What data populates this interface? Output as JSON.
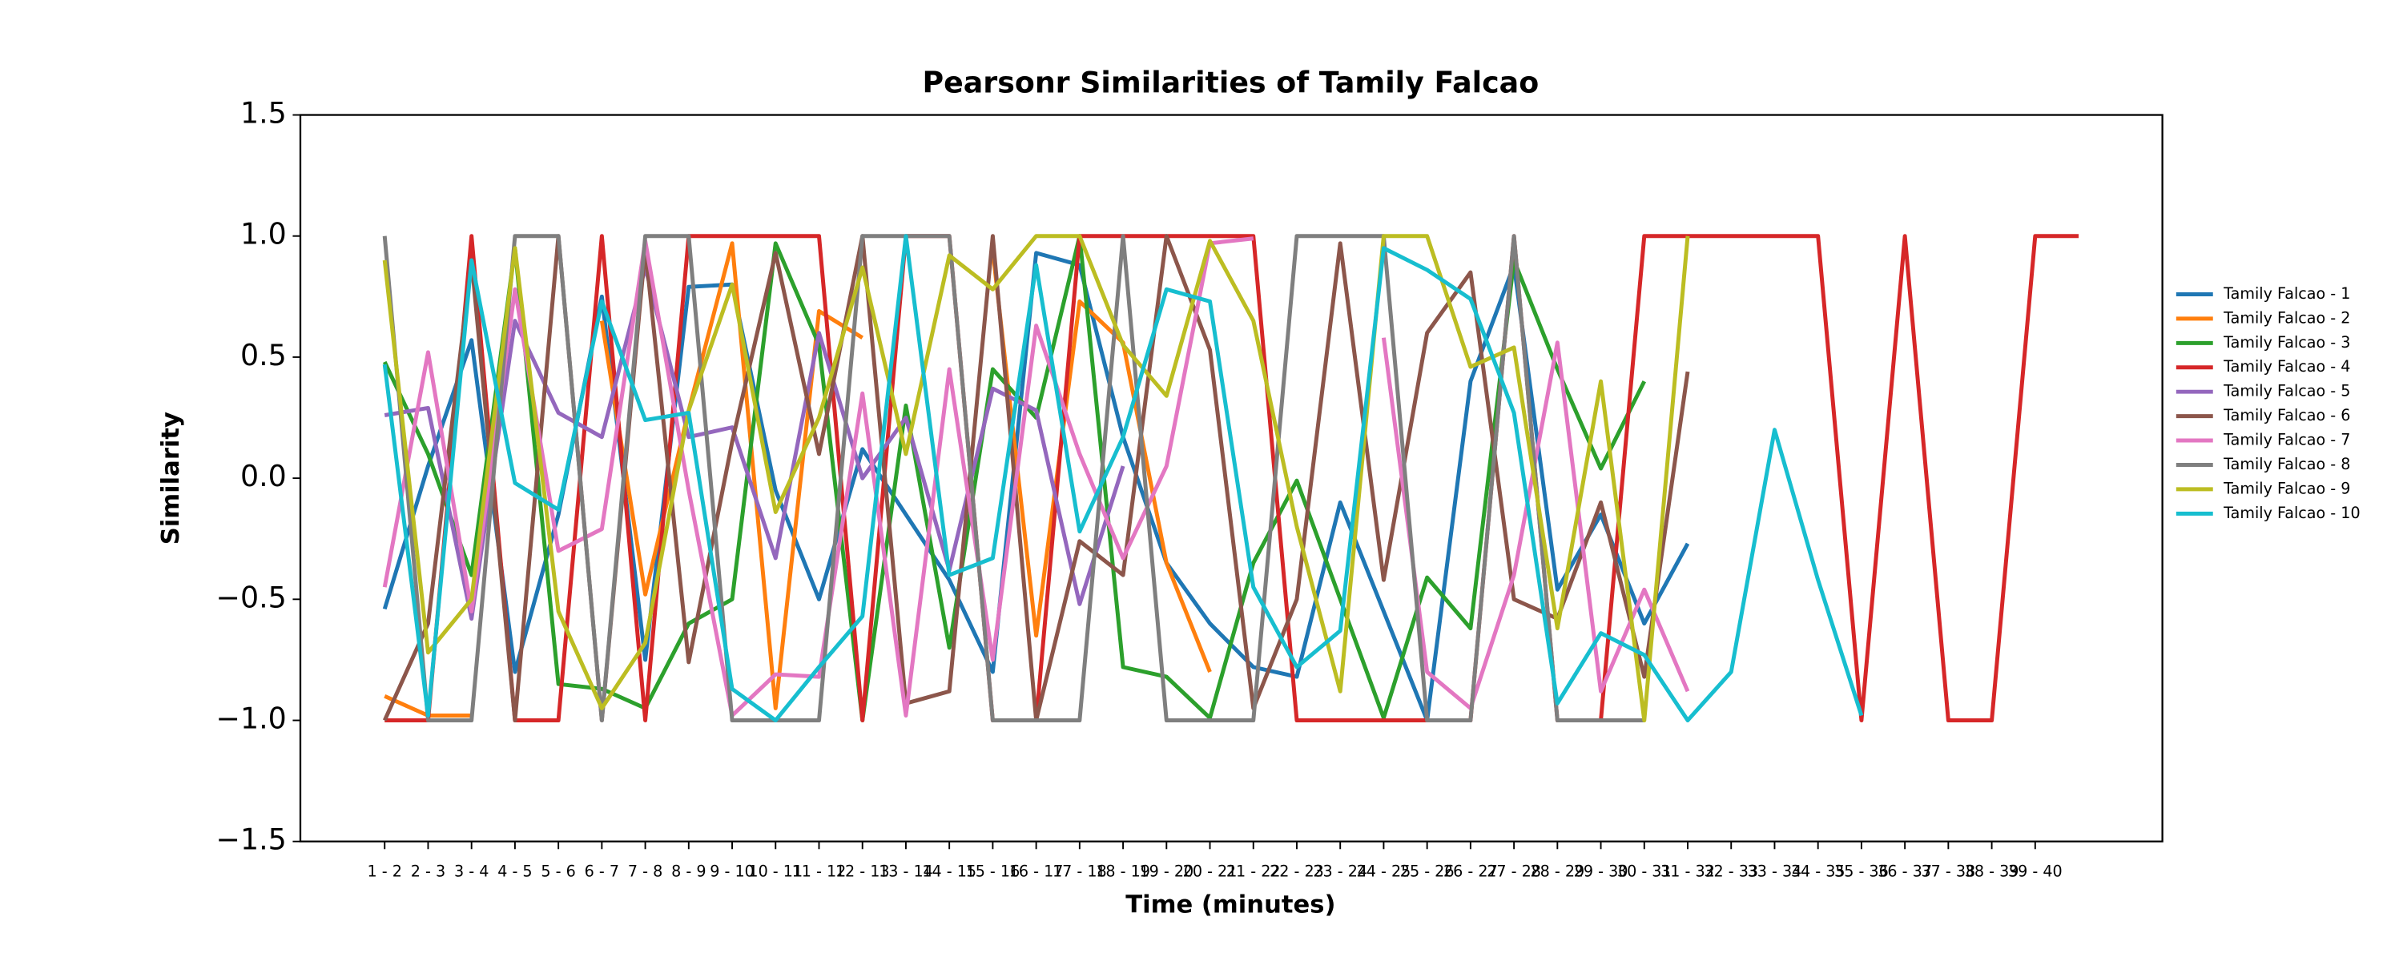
{
  "chart_data": {
    "type": "line",
    "title": "Pearsonr Similarities of Tamily Falcao",
    "x_label": "Time (minutes)",
    "y_label": "Similarity",
    "categories": [
      "1 - 2",
      "2 - 3",
      "3 - 4",
      "4 - 5",
      "5 - 6",
      "6 - 7",
      "7 - 8",
      "8 - 9",
      "9 - 10",
      "10 - 11",
      "11 - 12",
      "12 - 13",
      "13 - 14",
      "14 - 15",
      "15 - 16",
      "16 - 17",
      "17 - 18",
      "18 - 19",
      "19 - 20",
      "20 - 21",
      "21 - 22",
      "22 - 23",
      "23 - 24",
      "24 - 25",
      "25 - 26",
      "26 - 27",
      "27 - 28",
      "28 - 29",
      "29 - 30",
      "30 - 31",
      "31 - 32",
      "32 - 33",
      "33 - 34",
      "34 - 35",
      "35 - 36",
      "36 - 37",
      "37 - 38",
      "38 - 39",
      "39 - 40",
      null
    ],
    "ylim": [
      -1.5,
      1.5
    ],
    "yticks": [
      {
        "value": -1.5,
        "label": "−1.5"
      },
      {
        "value": -1,
        "label": "−1.0"
      },
      {
        "value": -0.5,
        "label": "−0.5"
      },
      {
        "value": 0,
        "label": "0.0"
      },
      0.5,
      {
        "value": 1,
        "label": "1.0"
      },
      1.5
    ],
    "legend": "right",
    "series": [
      {
        "name": "Tamily Falcao - 1",
        "color": "#1f77b4",
        "values": [
          -0.54,
          0.05,
          0.57,
          -0.8,
          -0.15,
          0.75,
          -0.75,
          0.79,
          0.8,
          -0.05,
          -0.5,
          0.12,
          -0.15,
          -0.42,
          -0.8,
          0.93,
          0.88,
          0.17,
          -0.35,
          -0.6,
          -0.78,
          -0.82,
          -0.1,
          -0.55,
          -1.0,
          0.4,
          0.88,
          -0.46,
          -0.15,
          -0.6,
          -0.27,
          null,
          null,
          null,
          null,
          null,
          null,
          null,
          null,
          null
        ]
      },
      {
        "name": "Tamily Falcao - 2",
        "color": "#ff7f0e",
        "values": [
          -0.9,
          -0.98,
          -0.98,
          null,
          null,
          0.65,
          -0.48,
          0.28,
          0.97,
          -0.95,
          0.69,
          0.58,
          null,
          null,
          0.94,
          -0.65,
          0.73,
          0.56,
          -0.35,
          -0.8,
          null,
          null,
          null,
          null,
          null,
          null,
          null,
          null,
          null,
          null,
          null,
          null,
          null,
          null,
          null,
          null,
          null,
          null,
          null,
          null
        ]
      },
      {
        "name": "Tamily Falcao - 3",
        "color": "#2ca02c",
        "values": [
          0.48,
          0.1,
          -0.4,
          0.95,
          -0.85,
          -0.87,
          -0.95,
          -0.6,
          -0.5,
          0.97,
          0.55,
          -1.0,
          0.3,
          -0.7,
          0.45,
          0.25,
          1.0,
          -0.78,
          -0.82,
          -0.99,
          -0.35,
          -0.01,
          -0.5,
          -0.99,
          -0.41,
          -0.62,
          0.9,
          0.45,
          0.04,
          0.4,
          null,
          null,
          null,
          null,
          null,
          null,
          null,
          null,
          null,
          null
        ]
      },
      {
        "name": "Tamily Falcao - 4",
        "color": "#d62728",
        "values": [
          -1,
          -1,
          1,
          -1,
          -1,
          1,
          -1,
          1,
          1,
          1,
          1,
          -1,
          1,
          1,
          -1,
          -1,
          1,
          1,
          1,
          1,
          1,
          -1,
          -1,
          -1,
          -1,
          -1,
          1,
          -1,
          -1,
          1,
          1,
          1,
          1,
          1,
          -1,
          1,
          -1,
          -1,
          1,
          1
        ]
      },
      {
        "name": "Tamily Falcao - 5",
        "color": "#9467bd",
        "values": [
          0.26,
          0.29,
          -0.58,
          0.65,
          0.27,
          0.17,
          0.87,
          0.17,
          0.21,
          -0.33,
          0.6,
          0.0,
          0.25,
          -0.38,
          0.37,
          0.28,
          -0.52,
          0.05,
          null,
          null,
          null,
          null,
          null,
          null,
          null,
          null,
          null,
          null,
          null,
          null,
          null,
          null,
          null,
          null,
          null,
          null,
          null,
          null,
          null,
          null
        ]
      },
      {
        "name": "Tamily Falcao - 6",
        "color": "#8c564b",
        "values": [
          -1,
          -0.6,
          0.9,
          -1,
          1,
          -1,
          0.95,
          -0.76,
          0.15,
          0.93,
          0.1,
          1.0,
          -0.93,
          -0.88,
          1.0,
          -1.0,
          -0.26,
          -0.4,
          1.0,
          0.53,
          -0.95,
          -0.5,
          0.97,
          -0.42,
          0.6,
          0.85,
          -0.5,
          -0.58,
          -0.1,
          -0.82,
          0.44,
          null,
          null,
          null,
          null,
          null,
          null,
          null,
          null,
          null
        ]
      },
      {
        "name": "Tamily Falcao - 7",
        "color": "#e377c2",
        "values": [
          -0.45,
          0.52,
          -0.55,
          0.78,
          -0.3,
          -0.21,
          0.98,
          -0.05,
          -0.98,
          -0.81,
          -0.82,
          0.35,
          -0.98,
          0.45,
          -0.75,
          0.63,
          0.1,
          -0.33,
          0.05,
          0.97,
          0.99,
          null,
          null,
          0.58,
          -0.8,
          -0.95,
          -0.4,
          0.56,
          -0.88,
          -0.46,
          -0.88,
          null,
          null,
          null,
          null,
          null,
          null,
          null,
          null,
          null
        ]
      },
      {
        "name": "Tamily Falcao - 8",
        "color": "#7f7f7f",
        "values": [
          1,
          -1,
          -1,
          1,
          1,
          -1,
          1,
          1,
          -1,
          -1,
          -1,
          1,
          1,
          1,
          -1,
          -1,
          -1,
          1,
          -1,
          -1,
          -1,
          1,
          1,
          1,
          -1,
          -1,
          1,
          -1,
          -1,
          -1,
          null,
          null,
          null,
          null,
          null,
          null,
          null,
          null,
          null,
          null
        ]
      },
      {
        "name": "Tamily Falcao - 9",
        "color": "#bcbd22",
        "values": [
          0.9,
          -0.72,
          -0.5,
          0.95,
          -0.55,
          -0.95,
          -0.68,
          0.28,
          0.8,
          -0.14,
          0.25,
          0.87,
          0.1,
          0.92,
          0.78,
          1.0,
          1.0,
          0.55,
          0.34,
          0.98,
          0.65,
          -0.2,
          -0.88,
          1.0,
          1.0,
          0.46,
          0.54,
          -0.62,
          0.4,
          -1.0,
          1.0,
          null,
          null,
          null,
          null,
          null,
          null,
          null,
          null,
          null
        ]
      },
      {
        "name": "Tamily Falcao - 10",
        "color": "#17becf",
        "values": [
          0.47,
          -0.98,
          0.9,
          -0.02,
          -0.13,
          0.73,
          0.24,
          0.27,
          -0.87,
          -1.0,
          -0.78,
          -0.57,
          1.0,
          -0.4,
          -0.33,
          0.88,
          -0.22,
          0.17,
          0.78,
          0.73,
          -0.45,
          -0.78,
          -0.63,
          0.95,
          0.86,
          0.74,
          0.27,
          -0.93,
          -0.64,
          -0.73,
          -1.0,
          -0.8,
          0.2,
          -0.42,
          -0.98,
          null,
          null,
          null,
          null,
          null
        ]
      }
    ]
  }
}
